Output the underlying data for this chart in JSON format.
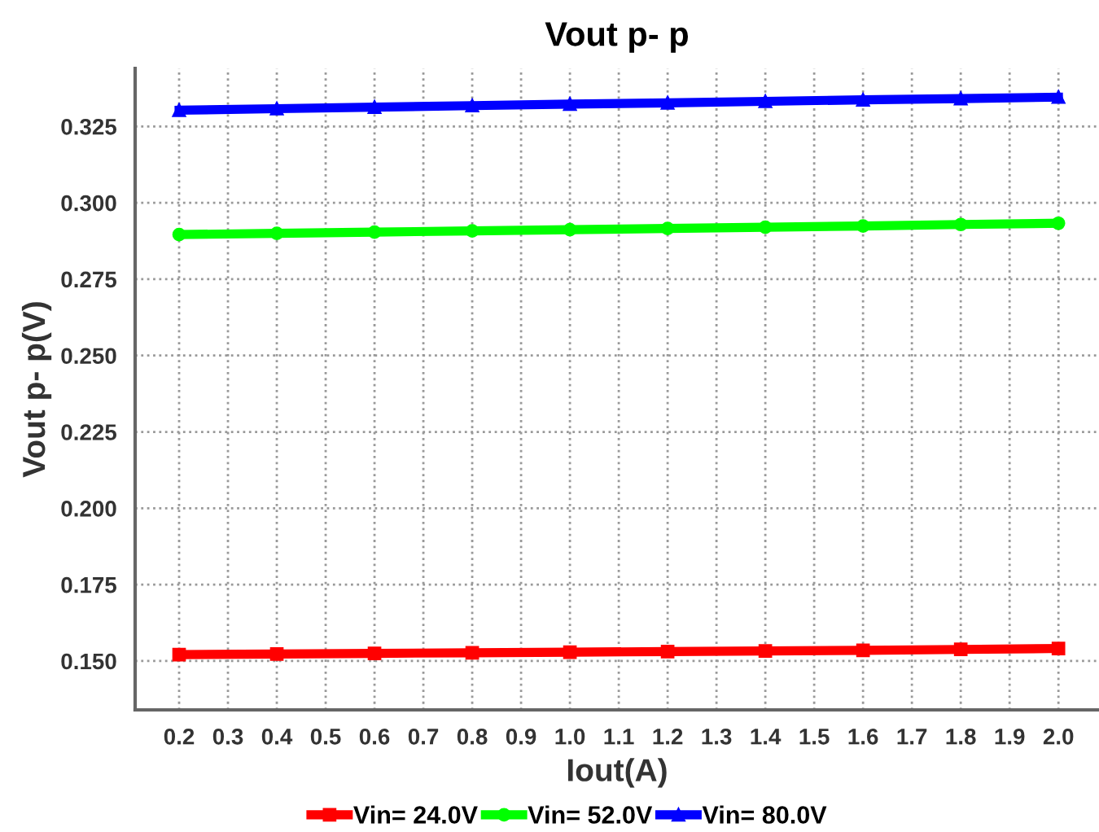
{
  "chart_data": {
    "type": "line",
    "title": "Vout p- p",
    "xlabel": "Iout(A)",
    "ylabel": "Vout p- p(V)",
    "x": [
      0.2,
      0.4,
      0.6,
      0.8,
      1.0,
      1.2,
      1.4,
      1.6,
      1.8,
      2.0
    ],
    "series": [
      {
        "name": "Vin= 24.0V",
        "color": "#ff0000",
        "marker": "square",
        "values": [
          0.1521,
          0.1523,
          0.1525,
          0.1527,
          0.1529,
          0.1531,
          0.1533,
          0.1535,
          0.1538,
          0.1541
        ]
      },
      {
        "name": "Vin= 52.0V",
        "color": "#00ff00",
        "marker": "circle",
        "values": [
          0.2896,
          0.29,
          0.2904,
          0.2908,
          0.2912,
          0.2916,
          0.292,
          0.2924,
          0.2929,
          0.2933
        ]
      },
      {
        "name": "Vin= 80.0V",
        "color": "#0000ff",
        "marker": "triangle",
        "values": [
          0.3303,
          0.3308,
          0.3313,
          0.3318,
          0.3323,
          0.3327,
          0.3332,
          0.3337,
          0.3341,
          0.3346
        ]
      }
    ],
    "xlim": [
      0.11,
      2.083
    ],
    "xticks": [
      {
        "value": 0.2,
        "label": "0.2"
      },
      {
        "value": 0.3,
        "label": "0.3"
      },
      {
        "value": 0.4,
        "label": "0.4"
      },
      {
        "value": 0.5,
        "label": "0.5"
      },
      {
        "value": 0.6,
        "label": "0.6"
      },
      {
        "value": 0.7,
        "label": "0.7"
      },
      {
        "value": 0.8,
        "label": "0.8"
      },
      {
        "value": 0.9,
        "label": "0.9"
      },
      {
        "value": 1.0,
        "label": "1.0"
      },
      {
        "value": 1.1,
        "label": "1.1"
      },
      {
        "value": 1.2,
        "label": "1.2"
      },
      {
        "value": 1.3,
        "label": "1.3"
      },
      {
        "value": 1.4,
        "label": "1.4"
      },
      {
        "value": 1.5,
        "label": "1.5"
      },
      {
        "value": 1.6,
        "label": "1.6"
      },
      {
        "value": 1.7,
        "label": "1.7"
      },
      {
        "value": 1.8,
        "label": "1.8"
      },
      {
        "value": 1.9,
        "label": "1.9"
      },
      {
        "value": 2.0,
        "label": "2.0"
      }
    ],
    "ylim": [
      0.134,
      0.344
    ],
    "yticks": [
      {
        "value": 0.15,
        "label": "0.150"
      },
      {
        "value": 0.175,
        "label": "0.175"
      },
      {
        "value": 0.2,
        "label": "0.200"
      },
      {
        "value": 0.225,
        "label": "0.225"
      },
      {
        "value": 0.25,
        "label": "0.250"
      },
      {
        "value": 0.275,
        "label": "0.275"
      },
      {
        "value": 0.3,
        "label": "0.300"
      },
      {
        "value": 0.325,
        "label": "0.325"
      }
    ],
    "grid": true,
    "legend": "bottom",
    "line_style": "solid"
  }
}
